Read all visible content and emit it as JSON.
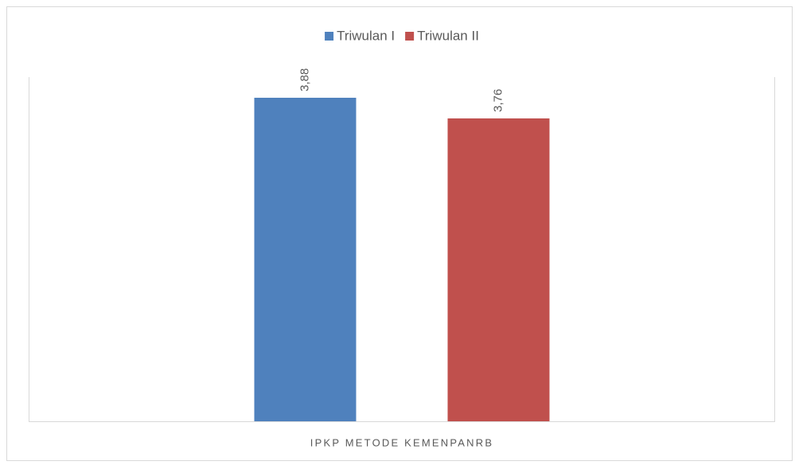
{
  "chart_data": {
    "type": "bar",
    "categories": [
      "IPKP METODE KEMENPANRB"
    ],
    "series": [
      {
        "name": "Triwulan I",
        "color": "#4f81bd",
        "values": [
          3.88
        ],
        "value_labels": [
          "3,88"
        ]
      },
      {
        "name": "Triwulan II",
        "color": "#c0504d",
        "values": [
          3.76
        ],
        "value_labels": [
          "3,76"
        ]
      }
    ],
    "ylim": [
      2,
      4
    ],
    "legend": "top"
  }
}
